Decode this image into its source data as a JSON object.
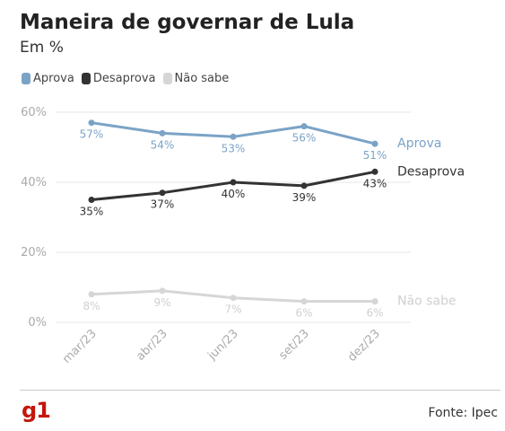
{
  "header": {
    "title": "Maneira de governar de Lula",
    "subtitle": "Em %"
  },
  "footer": {
    "logo": "g1",
    "source": "Fonte: Ipec",
    "brand_color": "#c4170c"
  },
  "chart_data": {
    "type": "line",
    "title": "Maneira de governar de Lula",
    "subtitle": "Em %",
    "xlabel": "",
    "ylabel": "",
    "categories": [
      "mar/23",
      "abr/23",
      "jun/23",
      "set/23",
      "dez/23"
    ],
    "ylim": [
      0,
      60
    ],
    "yticks": [
      0,
      20,
      40,
      60
    ],
    "ytick_labels": [
      "0%",
      "20%",
      "40%",
      "60%"
    ],
    "grid": true,
    "legend": "top-left",
    "series": [
      {
        "name": "Aprova",
        "color": "#7ba3c7",
        "values": [
          57,
          54,
          53,
          56,
          51
        ],
        "labels": [
          "57%",
          "54%",
          "53%",
          "56%",
          "51%"
        ],
        "label_pos": "below"
      },
      {
        "name": "Desaprova",
        "color": "#333333",
        "values": [
          35,
          37,
          40,
          39,
          43
        ],
        "labels": [
          "35%",
          "37%",
          "40%",
          "39%",
          "43%"
        ],
        "label_pos": "below"
      },
      {
        "name": "Não sabe",
        "color": "#d6d6d6",
        "values": [
          8,
          9,
          7,
          6,
          6
        ],
        "labels": [
          "8%",
          "9%",
          "7%",
          "6%",
          "6%"
        ],
        "label_pos": "below"
      }
    ]
  }
}
